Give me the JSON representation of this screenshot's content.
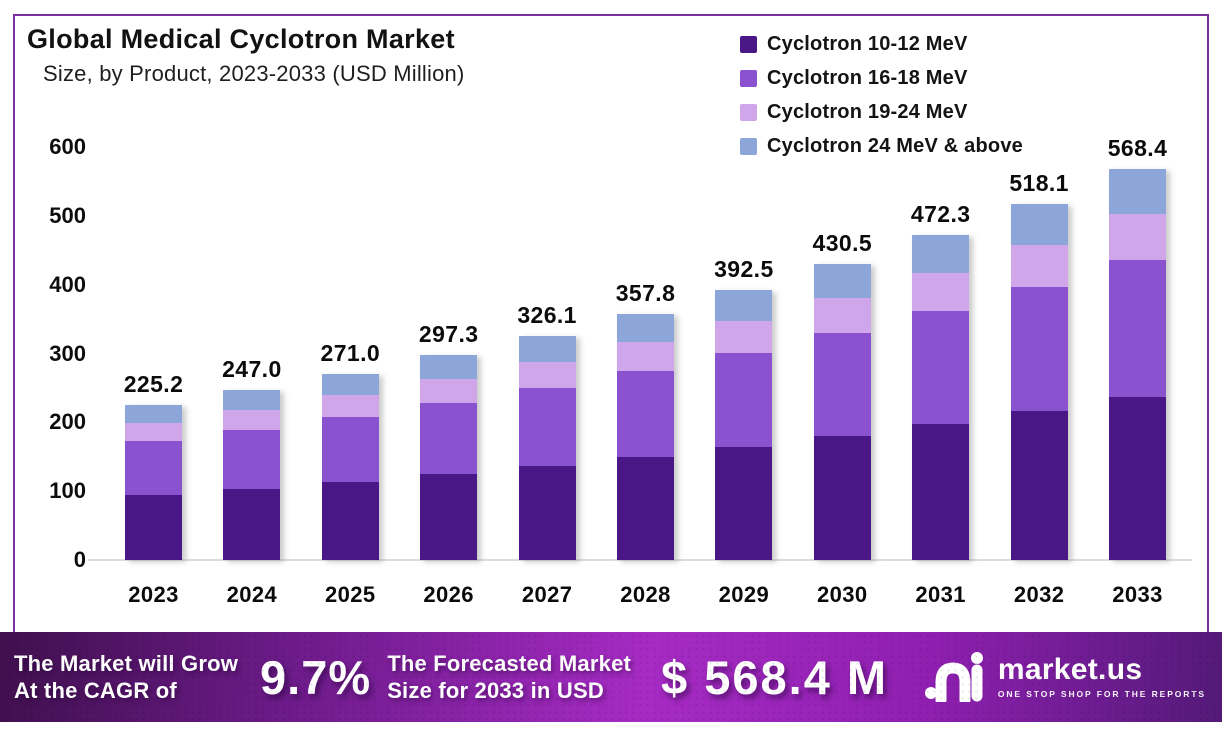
{
  "header": {
    "title": "Global Medical Cyclotron Market",
    "subtitle": "Size, by Product, 2023-2033 (USD Million)"
  },
  "legend": [
    {
      "label": "Cyclotron 10-12 MeV",
      "color": "#4a1786"
    },
    {
      "label": "Cyclotron 16-18 MeV",
      "color": "#8a52ce"
    },
    {
      "label": "Cyclotron 19-24 MeV",
      "color": "#cfa6e9"
    },
    {
      "label": "Cyclotron 24 MeV & above",
      "color": "#8ca6da"
    }
  ],
  "chart_data": {
    "type": "bar",
    "stacked": true,
    "title": "Global Medical Cyclotron Market Size, by Product, 2023-2033 (USD Million)",
    "categories": [
      "2023",
      "2024",
      "2025",
      "2026",
      "2027",
      "2028",
      "2029",
      "2030",
      "2031",
      "2032",
      "2033"
    ],
    "series": [
      {
        "name": "Cyclotron 10-12 MeV",
        "color": "#4a1786",
        "values": [
          94.1,
          103.2,
          113.3,
          124.3,
          136.3,
          149.6,
          164.1,
          180.0,
          197.4,
          216.6,
          237.6
        ]
      },
      {
        "name": "Cyclotron 16-18 MeV",
        "color": "#8a52ce",
        "values": [
          78.4,
          86.0,
          94.3,
          103.5,
          113.5,
          124.5,
          136.6,
          149.8,
          164.4,
          180.3,
          197.8
        ]
      },
      {
        "name": "Cyclotron 19-24 MeV",
        "color": "#cfa6e9",
        "values": [
          26.6,
          29.1,
          32.0,
          35.1,
          38.5,
          42.2,
          46.3,
          50.8,
          55.7,
          61.1,
          67.1
        ]
      },
      {
        "name": "Cyclotron 24 MeV & above",
        "color": "#8ca6da",
        "values": [
          26.1,
          28.7,
          31.4,
          34.5,
          37.8,
          41.5,
          45.5,
          49.9,
          54.8,
          60.1,
          65.9
        ]
      }
    ],
    "totals": [
      225.2,
      247.0,
      271.0,
      297.3,
      326.1,
      357.8,
      392.5,
      430.5,
      472.3,
      518.1,
      568.4
    ],
    "total_labels": [
      "225.2",
      "247.0",
      "271.0",
      "297.3",
      "326.1",
      "357.8",
      "392.5",
      "430.5",
      "472.3",
      "518.1",
      "568.4"
    ],
    "xlabel": "",
    "ylabel": "",
    "ylim": [
      0,
      600
    ],
    "yticks": [
      0,
      100,
      200,
      300,
      400,
      500,
      600
    ],
    "grid": false,
    "legend_position": "top-right"
  },
  "banner": {
    "left_line1": "The Market will Grow",
    "left_line2": "At the CAGR of",
    "cagr": "9.7%",
    "mid_line1": "The Forecasted Market",
    "mid_line2": "Size for 2033 in USD",
    "forecast_value": "$ 568.4 M",
    "brand": "market.us",
    "brand_tagline": "ONE STOP SHOP FOR THE REPORTS"
  },
  "colors": {
    "frame_border": "#7b2f9e",
    "baseline": "#dcdcdc",
    "banner_gradient_left": "#40104e",
    "banner_gradient_mid": "#a62bc4",
    "banner_gradient_right": "#531a78"
  }
}
